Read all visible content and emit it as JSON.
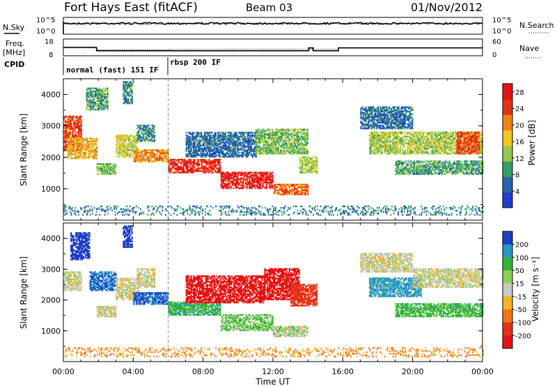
{
  "header": {
    "station": "Fort Hays East (fitACF)",
    "beam": "Beam 03",
    "date": "01/Nov/2012"
  },
  "strips": {
    "nsky": {
      "label": "N.Sky",
      "right_label": "N.Search",
      "ticks_left": [
        "10^5",
        "10^0"
      ],
      "ticks_right": [
        "10^5",
        "10^0"
      ]
    },
    "freq": {
      "label_line1": "Freq.",
      "label_line2": "[MHz]",
      "right_label": "Nave",
      "ticks_left": [
        "18",
        "8"
      ],
      "ticks_right": [
        "60",
        "0"
      ],
      "freq_steps": [
        {
          "t": 0.0,
          "mhz": 13.0
        },
        {
          "t": 1.9,
          "mhz": 10.3
        },
        {
          "t": 14.05,
          "mhz": 12.6
        },
        {
          "t": 14.3,
          "mhz": 10.3
        },
        {
          "t": 15.75,
          "mhz": 12.6
        },
        {
          "t": 24.0,
          "mhz": 12.6
        }
      ],
      "nave_steps": [
        {
          "t": 0.0,
          "n": 31
        },
        {
          "t": 1.9,
          "n": 22
        },
        {
          "t": 6.0,
          "n": 24
        },
        {
          "t": 9.0,
          "n": 25
        },
        {
          "t": 15.75,
          "n": 31
        },
        {
          "t": 24.0,
          "n": 31
        }
      ]
    },
    "cpid": {
      "label": "CPID",
      "modes": [
        {
          "name": "normal (fast) 151 IF",
          "start": 0.0
        },
        {
          "name": "rbsp 200 IF",
          "start": 6.0
        }
      ]
    }
  },
  "chart_data": [
    {
      "type": "heatmap",
      "title": "",
      "xlabel": "Time UT",
      "ylabel": "Slant Range [km]",
      "x_range_hours": [
        0,
        24
      ],
      "x_ticks": [
        "00:00",
        "04:00",
        "08:00",
        "12:00",
        "16:00",
        "20:00",
        "00:00"
      ],
      "ylim": [
        0,
        4500
      ],
      "y_ticks": [
        "1000",
        "2000",
        "3000",
        "4000"
      ],
      "colorbar": {
        "label": "Power [dB]",
        "ticks": [
          "4",
          "8",
          "12",
          "16",
          "20",
          "24",
          "28"
        ],
        "range": [
          0,
          30
        ],
        "colors": [
          "#1e3cd2",
          "#2864aa",
          "#32a064",
          "#96c850",
          "#f0c81e",
          "#f08214",
          "#e63214",
          "#e61414"
        ]
      },
      "echo_regions": [
        {
          "t0": 0.0,
          "t1": 1.0,
          "r0": 2200,
          "r1": 3300,
          "val": 24
        },
        {
          "t0": 0.2,
          "t1": 1.9,
          "r0": 1950,
          "r1": 2600,
          "val": 18
        },
        {
          "t0": 1.3,
          "t1": 2.5,
          "r0": 3500,
          "r1": 4200,
          "val": 10
        },
        {
          "t0": 1.9,
          "t1": 3.0,
          "r0": 1450,
          "r1": 1800,
          "val": 12
        },
        {
          "t0": 3.0,
          "t1": 4.2,
          "r0": 2000,
          "r1": 2700,
          "val": 15
        },
        {
          "t0": 3.4,
          "t1": 3.9,
          "r0": 3700,
          "r1": 4400,
          "val": 8
        },
        {
          "t0": 4.2,
          "t1": 5.2,
          "r0": 2500,
          "r1": 3000,
          "val": 8
        },
        {
          "t0": 4.0,
          "t1": 6.0,
          "r0": 1850,
          "r1": 2250,
          "val": 20
        },
        {
          "t0": 6.0,
          "t1": 9.0,
          "r0": 1500,
          "r1": 1950,
          "val": 26
        },
        {
          "t0": 9.0,
          "t1": 12.0,
          "r0": 1000,
          "r1": 1500,
          "val": 28
        },
        {
          "t0": 12.0,
          "t1": 14.0,
          "r0": 800,
          "r1": 1150,
          "val": 22
        },
        {
          "t0": 7.0,
          "t1": 11.0,
          "r0": 2000,
          "r1": 2800,
          "val": 6
        },
        {
          "t0": 11.0,
          "t1": 14.0,
          "r0": 2100,
          "r1": 2900,
          "val": 12
        },
        {
          "t0": 13.5,
          "t1": 14.5,
          "r0": 1500,
          "r1": 2000,
          "val": 14
        },
        {
          "t0": 17.0,
          "t1": 20.0,
          "r0": 2900,
          "r1": 3600,
          "val": 6
        },
        {
          "t0": 17.5,
          "t1": 24.0,
          "r0": 2100,
          "r1": 2800,
          "val": 14
        },
        {
          "t0": 19.0,
          "t1": 24.0,
          "r0": 1450,
          "r1": 1900,
          "val": 10
        },
        {
          "t0": 22.5,
          "t1": 23.8,
          "r0": 2100,
          "r1": 2800,
          "val": 24
        },
        {
          "t0": 0.0,
          "t1": 24.0,
          "r0": 150,
          "r1": 450,
          "val": 7
        }
      ]
    },
    {
      "type": "heatmap",
      "title": "",
      "xlabel": "Time UT",
      "ylabel": "Slant Range [km]",
      "x_range_hours": [
        0,
        24
      ],
      "x_ticks": [
        "00:00",
        "04:00",
        "08:00",
        "12:00",
        "16:00",
        "20:00",
        "00:00"
      ],
      "ylim": [
        0,
        4500
      ],
      "y_ticks": [
        "1000",
        "2000",
        "3000",
        "4000"
      ],
      "colorbar": {
        "label": "Velocity [m s⁻¹]",
        "ticks": [
          "200",
          "100",
          "50",
          "15",
          "-15",
          "-50",
          "-100",
          "-200"
        ],
        "colors": [
          "#1e3cc8",
          "#2896c8",
          "#32b432",
          "#8cd250",
          "#c8c8c8",
          "#f5b41e",
          "#f07814",
          "#e63214",
          "#e61414"
        ]
      },
      "echo_regions": [
        {
          "t0": 0.0,
          "t1": 1.0,
          "r0": 2300,
          "r1": 2900,
          "val": 0
        },
        {
          "t0": 0.4,
          "t1": 1.5,
          "r0": 3300,
          "r1": 4200,
          "val": 200
        },
        {
          "t0": 1.5,
          "t1": 3.0,
          "r0": 2300,
          "r1": 2900,
          "val": 150
        },
        {
          "t0": 1.9,
          "t1": 3.0,
          "r0": 1450,
          "r1": 1800,
          "val": 0
        },
        {
          "t0": 3.0,
          "t1": 4.3,
          "r0": 2000,
          "r1": 2700,
          "val": 0
        },
        {
          "t0": 3.4,
          "t1": 3.9,
          "r0": 3700,
          "r1": 4400,
          "val": 200
        },
        {
          "t0": 4.2,
          "t1": 5.2,
          "r0": 2400,
          "r1": 3000,
          "val": 0
        },
        {
          "t0": 4.0,
          "t1": 6.0,
          "r0": 1850,
          "r1": 2250,
          "val": 150
        },
        {
          "t0": 6.0,
          "t1": 9.0,
          "r0": 1500,
          "r1": 1950,
          "val": 60
        },
        {
          "t0": 9.0,
          "t1": 12.0,
          "r0": 1000,
          "r1": 1500,
          "val": 30
        },
        {
          "t0": 12.0,
          "t1": 14.0,
          "r0": 800,
          "r1": 1150,
          "val": 10
        },
        {
          "t0": 7.0,
          "t1": 11.5,
          "r0": 1900,
          "r1": 2800,
          "val": -180
        },
        {
          "t0": 11.5,
          "t1": 13.5,
          "r0": 2000,
          "r1": 3000,
          "val": -220
        },
        {
          "t0": 13.0,
          "t1": 14.5,
          "r0": 1800,
          "r1": 2500,
          "val": -120
        },
        {
          "t0": 17.0,
          "t1": 20.0,
          "r0": 2900,
          "r1": 3500,
          "val": 0
        },
        {
          "t0": 17.5,
          "t1": 20.5,
          "r0": 2100,
          "r1": 2700,
          "val": 100
        },
        {
          "t0": 20.0,
          "t1": 24.0,
          "r0": 2400,
          "r1": 3000,
          "val": 0
        },
        {
          "t0": 19.0,
          "t1": 24.0,
          "r0": 1450,
          "r1": 1900,
          "val": 50
        },
        {
          "t0": 0.0,
          "t1": 24.0,
          "r0": 150,
          "r1": 450,
          "val": -40
        }
      ]
    }
  ]
}
